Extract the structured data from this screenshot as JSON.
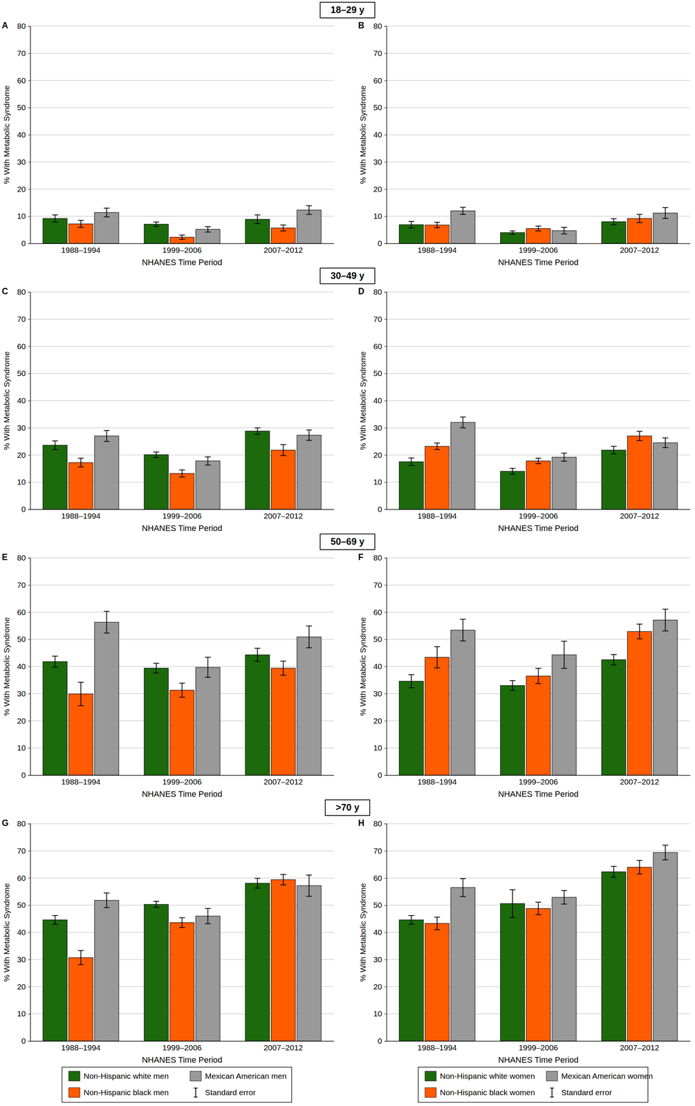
{
  "chart_data": [
    {
      "type": "bar",
      "title": "A",
      "header": "18–29 y",
      "x_label": "NHANES Time Period",
      "y_label": "% With Metabolic Syndrome",
      "categories": [
        "1988–1994",
        "1999–2006",
        "2007–2012"
      ],
      "ylim": [
        0,
        80
      ],
      "yticks": [
        0,
        10,
        20,
        30,
        40,
        50,
        60,
        70,
        80
      ],
      "grid": true,
      "series": [
        {
          "color": "#1d6a0c",
          "values": [
            9.2,
            7.1,
            8.9
          ],
          "errors": [
            1.3,
            0.8,
            1.6
          ]
        },
        {
          "color": "#ff5b00",
          "values": [
            7.2,
            2.3,
            5.7
          ],
          "errors": [
            1.3,
            0.8,
            1.1
          ]
        },
        {
          "color": "#999999",
          "values": [
            11.4,
            5.2,
            12.3
          ],
          "errors": [
            1.6,
            1.0,
            1.6
          ]
        }
      ]
    },
    {
      "type": "bar",
      "title": "B",
      "x_label": "NHANES Time Period",
      "y_label": "% With Metabolic Syndrome",
      "categories": [
        "1988–1994",
        "1999–2006",
        "2007–2012"
      ],
      "ylim": [
        0,
        80
      ],
      "yticks": [
        0,
        10,
        20,
        30,
        40,
        50,
        60,
        70,
        80
      ],
      "grid": true,
      "series": [
        {
          "color": "#1d6a0c",
          "values": [
            6.9,
            4.0,
            8.0
          ],
          "errors": [
            1.2,
            0.6,
            1.1
          ]
        },
        {
          "color": "#ff5b00",
          "values": [
            6.8,
            5.5,
            9.2
          ],
          "errors": [
            1.0,
            0.9,
            1.5
          ]
        },
        {
          "color": "#999999",
          "values": [
            12.0,
            4.7,
            11.2
          ],
          "errors": [
            1.3,
            1.2,
            2.0
          ]
        }
      ]
    },
    {
      "type": "bar",
      "title": "C",
      "header": "30–49 y",
      "x_label": "NHANES Time Period",
      "y_label": "% With Metabolic Syndrome",
      "categories": [
        "1988–1994",
        "1999–2006",
        "2007–2012"
      ],
      "ylim": [
        0,
        80
      ],
      "yticks": [
        0,
        10,
        20,
        30,
        40,
        50,
        60,
        70,
        80
      ],
      "grid": true,
      "series": [
        {
          "color": "#1d6a0c",
          "values": [
            23.6,
            20.1,
            28.8
          ],
          "errors": [
            1.6,
            1.0,
            1.2
          ]
        },
        {
          "color": "#ff5b00",
          "values": [
            17.2,
            13.2,
            21.8
          ],
          "errors": [
            1.6,
            1.3,
            2.0
          ]
        },
        {
          "color": "#999999",
          "values": [
            27.0,
            17.8,
            27.3
          ],
          "errors": [
            2.0,
            1.5,
            1.9
          ]
        }
      ]
    },
    {
      "type": "bar",
      "title": "D",
      "x_label": "NHANES Time Period",
      "y_label": "% With Metabolic Syndrome",
      "categories": [
        "1988–1994",
        "1999–2006",
        "2007–2012"
      ],
      "ylim": [
        0,
        80
      ],
      "yticks": [
        0,
        10,
        20,
        30,
        40,
        50,
        60,
        70,
        80
      ],
      "grid": true,
      "series": [
        {
          "color": "#1d6a0c",
          "values": [
            17.5,
            14.0,
            21.8
          ],
          "errors": [
            1.4,
            1.1,
            1.4
          ]
        },
        {
          "color": "#ff5b00",
          "values": [
            23.2,
            17.8,
            27.0
          ],
          "errors": [
            1.2,
            1.0,
            1.7
          ]
        },
        {
          "color": "#999999",
          "values": [
            32.0,
            19.2,
            24.5
          ],
          "errors": [
            2.0,
            1.5,
            1.8
          ]
        }
      ]
    },
    {
      "type": "bar",
      "title": "E",
      "header": "50–69 y",
      "x_label": "NHANES Time Period",
      "y_label": "% With Metabolic Syndrome",
      "categories": [
        "1988–1994",
        "1999–2006",
        "2007–2012"
      ],
      "ylim": [
        0,
        80
      ],
      "yticks": [
        0,
        10,
        20,
        30,
        40,
        50,
        60,
        70,
        80
      ],
      "grid": true,
      "series": [
        {
          "color": "#1d6a0c",
          "values": [
            41.8,
            39.4,
            44.3
          ],
          "errors": [
            2.0,
            1.8,
            2.4
          ]
        },
        {
          "color": "#ff5b00",
          "values": [
            29.9,
            31.3,
            39.4
          ],
          "errors": [
            4.3,
            2.6,
            2.6
          ]
        },
        {
          "color": "#999999",
          "values": [
            56.3,
            39.7,
            50.9
          ],
          "errors": [
            4.0,
            3.7,
            4.0
          ]
        }
      ]
    },
    {
      "type": "bar",
      "title": "F",
      "x_label": "NHANES Time Period",
      "y_label": "% With Metabolic Syndrome",
      "categories": [
        "1988–1994",
        "1999–2006",
        "2007–2012"
      ],
      "ylim": [
        0,
        80
      ],
      "yticks": [
        0,
        10,
        20,
        30,
        40,
        50,
        60,
        70,
        80
      ],
      "grid": true,
      "series": [
        {
          "color": "#1d6a0c",
          "values": [
            34.6,
            33.0,
            42.5
          ],
          "errors": [
            2.4,
            1.8,
            1.9
          ]
        },
        {
          "color": "#ff5b00",
          "values": [
            43.4,
            36.5,
            52.9
          ],
          "errors": [
            3.9,
            2.8,
            2.7
          ]
        },
        {
          "color": "#999999",
          "values": [
            53.4,
            44.3,
            57.1
          ],
          "errors": [
            4.0,
            5.0,
            4.0
          ]
        }
      ]
    },
    {
      "type": "bar",
      "title": "G",
      "header": ">70 y",
      "x_label": "NHANES Time Period",
      "y_label": "% With Metabolic Syndrome",
      "categories": [
        "1988–1994",
        "1999–2006",
        "2007–2012"
      ],
      "ylim": [
        0,
        80
      ],
      "yticks": [
        0,
        10,
        20,
        30,
        40,
        50,
        60,
        70,
        80
      ],
      "grid": true,
      "legend": "bottom",
      "error_label": "Standard error",
      "series": [
        {
          "name": "Non-Hispanic white men",
          "color": "#1d6a0c",
          "values": [
            44.6,
            50.3,
            58.1
          ],
          "errors": [
            1.6,
            1.1,
            1.8
          ]
        },
        {
          "name": "Non-Hispanic black men",
          "color": "#ff5b00",
          "values": [
            30.7,
            43.6,
            59.4
          ],
          "errors": [
            2.6,
            1.8,
            1.9
          ]
        },
        {
          "name": "Mexican American men",
          "color": "#999999",
          "values": [
            51.8,
            46.0,
            57.2
          ],
          "errors": [
            2.7,
            2.8,
            3.9
          ]
        }
      ]
    },
    {
      "type": "bar",
      "title": "H",
      "x_label": "NHANES Time Period",
      "y_label": "% With Metabolic Syndrome",
      "categories": [
        "1988–1994",
        "1999–2006",
        "2007–2012"
      ],
      "ylim": [
        0,
        80
      ],
      "yticks": [
        0,
        10,
        20,
        30,
        40,
        50,
        60,
        70,
        80
      ],
      "grid": true,
      "legend": "bottom",
      "error_label": "Standard error",
      "series": [
        {
          "name": "Non-Hispanic white women",
          "color": "#1d6a0c",
          "values": [
            44.6,
            50.6,
            62.3
          ],
          "errors": [
            1.6,
            5.1,
            2.0
          ]
        },
        {
          "name": "Non-Hispanic black women",
          "color": "#ff5b00",
          "values": [
            43.3,
            48.8,
            64.0
          ],
          "errors": [
            2.3,
            2.3,
            2.5
          ]
        },
        {
          "name": "Mexican American women",
          "color": "#999999",
          "values": [
            56.5,
            52.9,
            69.4
          ],
          "errors": [
            3.3,
            2.5,
            2.7
          ]
        }
      ]
    }
  ]
}
